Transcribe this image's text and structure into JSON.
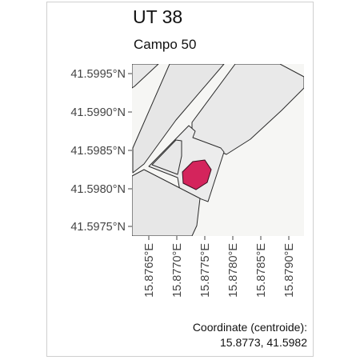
{
  "header": {
    "title": "UT 38",
    "subtitle": "Campo 50"
  },
  "map": {
    "lat_ticks": [
      "41.5995°N",
      "41.5990°N",
      "41.5985°N",
      "41.5980°N",
      "41.5975°N"
    ],
    "lon_ticks": [
      "15.8765°E",
      "15.8770°E",
      "15.8775°E",
      "15.8780°E",
      "15.8785°E",
      "15.8790°E"
    ],
    "colors": {
      "panel_background": "#f6f6f4",
      "parcel_fill": "#e8e8e8",
      "parcel_stroke": "#2a2a2a",
      "highlight_fill": "#d4245c",
      "highlight_stroke": "#3a1020"
    }
  },
  "caption": {
    "line1": "Coordinate (centroide):",
    "line2": "15.8773, 41.5982"
  }
}
